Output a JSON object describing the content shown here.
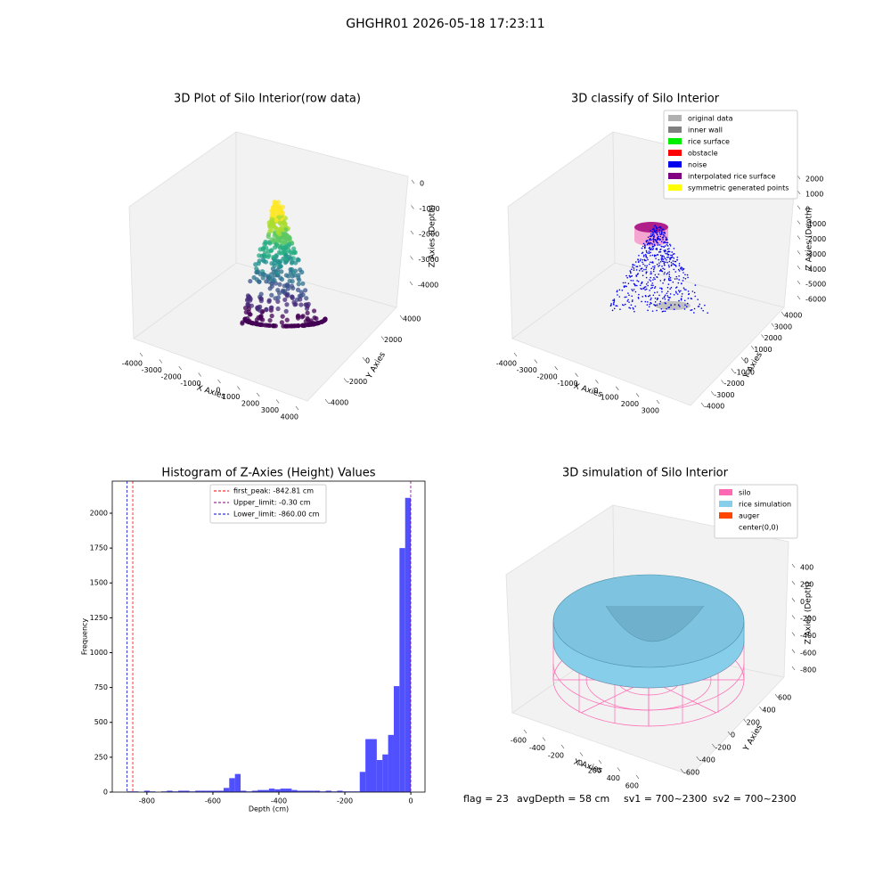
{
  "title": "GHGHR01 2026-05-18 17:23:11",
  "chart_data": [
    {
      "type": "scatter3d",
      "title": "3D Plot of Silo Interior(row data)",
      "xlabel": "X Axies",
      "ylabel": "Y Axies",
      "zlabel": "Z Axies (Depth)",
      "xticks": [
        -4000,
        -3000,
        -2000,
        -1000,
        0,
        1000,
        2000,
        3000,
        4000
      ],
      "yticks": [
        -4000,
        -2000,
        0,
        2000,
        4000
      ],
      "zticks": [
        0,
        -1000,
        -2000,
        -3000,
        -4000
      ]
    },
    {
      "type": "scatter3d",
      "title": "3D classify of Silo Interior",
      "xlabel": "X Axies",
      "ylabel": "Y Axies",
      "zlabel": "Z Axies (Depth)",
      "xticks": [
        -4000,
        -3000,
        -2000,
        -1000,
        0,
        1000,
        2000,
        3000
      ],
      "yticks": [
        -4000,
        -3000,
        -2000,
        -1000,
        0,
        1000,
        2000,
        3000,
        4000
      ],
      "zticks": [
        2000,
        1000,
        0,
        -1000,
        -2000,
        -3000,
        -4000,
        -5000,
        -6000
      ],
      "legend": [
        {
          "name": "original data",
          "color": "#b0b0b0"
        },
        {
          "name": "inner wall",
          "color": "#808080"
        },
        {
          "name": "rice surface",
          "color": "#00ee00"
        },
        {
          "name": "obstacle",
          "color": "#ff0000"
        },
        {
          "name": "noise",
          "color": "#0000ee"
        },
        {
          "name": "interpolated rice surface",
          "color": "#800080"
        },
        {
          "name": "symmetric generated points",
          "color": "#ffff00"
        }
      ]
    },
    {
      "type": "histogram",
      "title": "Histogram of Z-Axies (Height) Values",
      "xlabel": "Depth (cm)",
      "ylabel": "Frequency",
      "color": "#5050ff",
      "bins": [
        -860,
        -842.8,
        -825.6,
        -808.4,
        -791.2,
        -774,
        -756.8,
        -739.6,
        -722.4,
        -705.2,
        -688,
        -670.8,
        -653.6,
        -636.4,
        -619.2,
        -602,
        -584.8,
        -567.6,
        -550.4,
        -533.2,
        -516,
        -498.8,
        -481.6,
        -464.4,
        -447.2,
        -430,
        -412.8,
        -395.6,
        -378.4,
        -361.2,
        -344,
        -326.8,
        -309.6,
        -292.4,
        -275.2,
        -258,
        -240.8,
        -223.6,
        -206.4,
        -189.2,
        -172,
        -154.8,
        -137.6,
        -120.4,
        -103.2,
        -86,
        -68.8,
        -51.6,
        -34.4,
        -17.2,
        0
      ],
      "counts": [
        5,
        5,
        0,
        10,
        5,
        0,
        5,
        10,
        5,
        10,
        10,
        5,
        10,
        10,
        10,
        10,
        10,
        30,
        100,
        130,
        10,
        5,
        10,
        15,
        15,
        25,
        20,
        25,
        25,
        15,
        10,
        10,
        10,
        10,
        5,
        10,
        5,
        10,
        5,
        5,
        5,
        145,
        380,
        380,
        230,
        270,
        410,
        760,
        1750,
        2110
      ],
      "xlim": [
        -905,
        43
      ],
      "ylim": [
        0,
        2230
      ],
      "xticks": [
        -800,
        -600,
        -400,
        -200,
        0
      ],
      "yticks": [
        0,
        250,
        500,
        750,
        1000,
        1250,
        1500,
        1750,
        2000
      ],
      "lines": [
        {
          "label": "first_peak: -842.81 cm",
          "value": -842.81,
          "color": "#ff0000"
        },
        {
          "label": "Upper_limit: -0.30 cm",
          "value": -0.3,
          "color": "#800080"
        },
        {
          "label": "Lower_limit: -860.00 cm",
          "value": -860,
          "color": "#0000cc"
        }
      ]
    },
    {
      "type": "surface3d",
      "title": "3D simulation of Silo Interior",
      "xlabel": "X Axies",
      "ylabel": "Y Axies",
      "zlabel": "Z Axies (Depth)",
      "xticks": [
        -600,
        -400,
        -200,
        0,
        200,
        400,
        600
      ],
      "yticks": [
        -600,
        -400,
        -200,
        0,
        200,
        400,
        600
      ],
      "zticks": [
        400,
        200,
        0,
        -200,
        -400,
        -600,
        -800
      ],
      "legend": [
        {
          "name": "silo",
          "color": "#ff69b4"
        },
        {
          "name": "rice simulation",
          "color": "#87ceeb"
        },
        {
          "name": "auger",
          "color": "#ff4500"
        },
        {
          "name": "center(0,0)",
          "color": "#ffffff"
        }
      ]
    }
  ],
  "footer": [
    "flag = 23",
    "avgDepth = 58 cm",
    "sv1 = 700~2300",
    "sv2 = 700~2300"
  ]
}
